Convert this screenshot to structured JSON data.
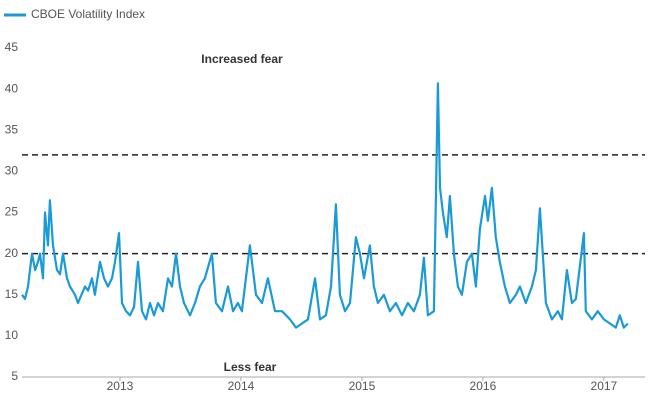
{
  "chart_data": {
    "type": "line",
    "series": [
      {
        "name": "CBOE Volatility Index",
        "color": "#1a9ad6",
        "x": [
          2012.19,
          2012.215,
          2012.24,
          2012.273,
          2012.298,
          2012.322,
          2012.339,
          2012.364,
          2012.38,
          2012.405,
          2012.421,
          2012.446,
          2012.479,
          2012.504,
          2012.529,
          2012.562,
          2012.587,
          2012.628,
          2012.653,
          2012.711,
          2012.736,
          2012.769,
          2012.793,
          2012.835,
          2012.868,
          2012.901,
          2012.934,
          2012.959,
          2012.992,
          2013.017,
          2013.05,
          2013.083,
          2013.116,
          2013.149,
          2013.182,
          2013.215,
          2013.248,
          2013.281,
          2013.314,
          2013.355,
          2013.397,
          2013.43,
          2013.463,
          2013.496,
          2013.529,
          2013.579,
          2013.62,
          2013.661,
          2013.702,
          2013.76,
          2013.793,
          2013.843,
          2013.893,
          2013.934,
          2013.975,
          2014.008,
          2014.074,
          2014.124,
          2014.174,
          2014.223,
          2014.281,
          2014.339,
          2014.405,
          2014.455,
          2014.504,
          2014.554,
          2014.612,
          2014.653,
          2014.702,
          2014.744,
          2014.785,
          2014.818,
          2014.86,
          2014.901,
          2014.95,
          2014.983,
          2015.017,
          2015.066,
          2015.099,
          2015.132,
          2015.182,
          2015.231,
          2015.281,
          2015.331,
          2015.38,
          2015.43,
          2015.479,
          2015.512,
          2015.545,
          2015.595,
          2015.628,
          2015.645,
          2015.669,
          2015.702,
          2015.727,
          2015.76,
          2015.793,
          2015.826,
          2015.868,
          2015.909,
          2015.942,
          2015.975,
          2016.017,
          2016.041,
          2016.074,
          2016.107,
          2016.14,
          2016.182,
          2016.223,
          2016.273,
          2016.306,
          2016.355,
          2016.405,
          2016.438,
          2016.471,
          2016.521,
          2016.57,
          2016.62,
          2016.653,
          2016.694,
          2016.736,
          2016.769,
          2016.835,
          2016.851,
          2016.901,
          2016.95,
          2017.0,
          2017.05,
          2017.099,
          2017.132,
          2017.165,
          2017.198
        ],
        "values": [
          15,
          14.5,
          16,
          20,
          18,
          19,
          20,
          17,
          25,
          21,
          26.5,
          21,
          18,
          17.5,
          20,
          17,
          16,
          15,
          14,
          16,
          15.5,
          17,
          15,
          19,
          17,
          16,
          17,
          19,
          22.5,
          14,
          13,
          12.5,
          13.5,
          19,
          13,
          12,
          14,
          12.5,
          14,
          13,
          17,
          16,
          20,
          16,
          14,
          12.5,
          14,
          16,
          17,
          20,
          14,
          13,
          16,
          13,
          14,
          13,
          21,
          15,
          14,
          17,
          13,
          13,
          12,
          11,
          11.5,
          12,
          17,
          12,
          12.5,
          16,
          26,
          15,
          13,
          14,
          22,
          20,
          17,
          21,
          16,
          14,
          15,
          13,
          14,
          12.5,
          14,
          13,
          15,
          19.5,
          12.5,
          13,
          40.7,
          28,
          25,
          22,
          27,
          20,
          16,
          15,
          19,
          20,
          16,
          23,
          27,
          24,
          28,
          22,
          19,
          16,
          14,
          15,
          16,
          14,
          16,
          18,
          25.5,
          14,
          12,
          13,
          12,
          18,
          14,
          14.5,
          22.5,
          13,
          12,
          13,
          12,
          11.5,
          11,
          12.5,
          11,
          11.5
        ]
      }
    ],
    "xlim": [
      2012.19,
      2017.34
    ],
    "xticks": [
      2013,
      2014,
      2015,
      2016,
      2017
    ],
    "ylim": [
      5,
      45
    ],
    "yticks": [
      5,
      10,
      15,
      20,
      25,
      30,
      35,
      40,
      45
    ],
    "hlines": [
      32,
      20
    ],
    "annotations": [
      "Increased fear",
      "Less fear"
    ]
  }
}
